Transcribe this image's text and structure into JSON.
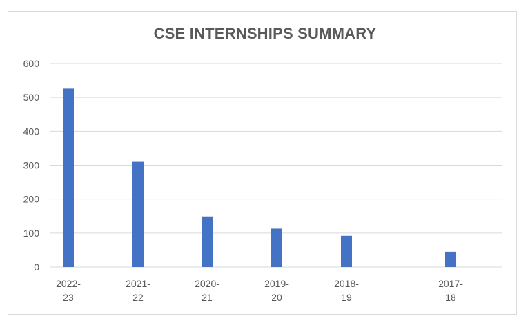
{
  "chart_data": {
    "type": "bar",
    "title": "CSE INTERNSHIPS SUMMARY",
    "xlabel": "",
    "ylabel": "",
    "categories": [
      [
        "2022-",
        "23"
      ],
      [
        "2021-",
        "22"
      ],
      [
        "2020-",
        "21"
      ],
      [
        "2019-",
        "20"
      ],
      [
        "2018-",
        "19"
      ],
      [
        "2017-",
        "18"
      ]
    ],
    "values": [
      526,
      310,
      149,
      113,
      92,
      45
    ],
    "ylim": [
      0,
      600
    ],
    "yticks": [
      "0",
      "100",
      "200",
      "300",
      "400",
      "500",
      "600"
    ],
    "grid": true,
    "legend": "none",
    "bar_color": "#4472C4",
    "grid_color": "#d9d9d9"
  }
}
